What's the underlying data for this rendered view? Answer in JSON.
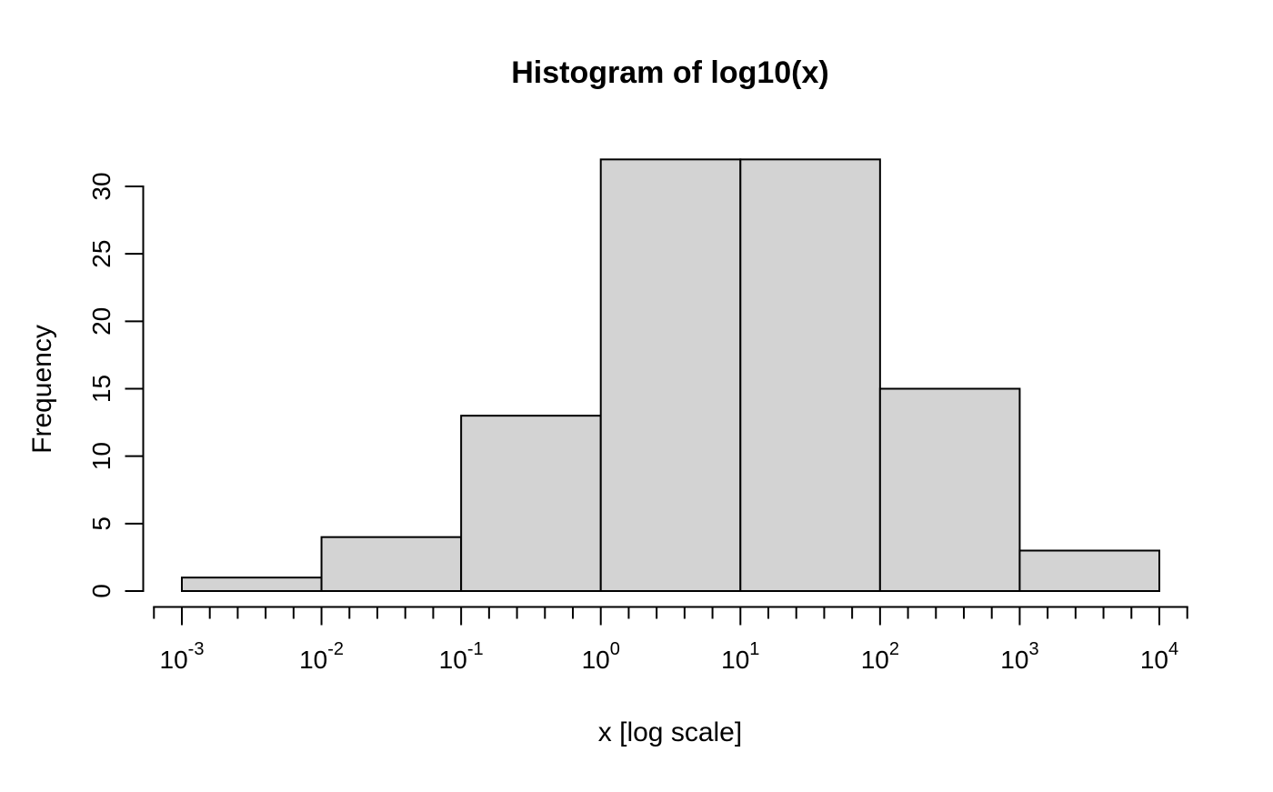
{
  "chart_data": {
    "type": "bar",
    "subtype": "histogram",
    "title": "Histogram of log10(x)",
    "xlabel": "x [log scale]",
    "ylabel": "Frequency",
    "x_scale": "log10",
    "bin_edges_log10": [
      -3,
      -2,
      -1,
      0,
      1,
      2,
      3,
      4
    ],
    "frequencies": [
      1,
      4,
      13,
      32,
      32,
      15,
      3
    ],
    "y_ticks": [
      0,
      5,
      10,
      15,
      20,
      25,
      30
    ],
    "y_axis_range": [
      0,
      30
    ],
    "x_major_ticks": {
      "base": "10",
      "exponents": [
        -3,
        -2,
        -1,
        0,
        1,
        2,
        3,
        4
      ]
    },
    "x_minor_tick_interval_log10": 0.2,
    "x_axis_range_log10": [
      -3.2,
      4.2
    ],
    "grid": false,
    "legend": false,
    "colors": {
      "bar_fill": "#d3d3d3",
      "bar_border": "#000000",
      "axis": "#000000",
      "text": "#000000",
      "background": "#ffffff"
    }
  }
}
